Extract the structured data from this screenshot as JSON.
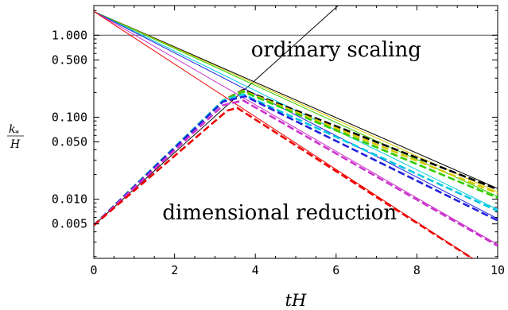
{
  "chart_data": {
    "type": "line",
    "xlabel": "tH",
    "ylabel_num": "k",
    "ylabel_sub": "*",
    "ylabel_den": "H",
    "xlim": [
      0,
      10
    ],
    "ylim": [
      0.0019,
      2.3
    ],
    "yscale": "log",
    "grid": false,
    "x_ticks": [
      0,
      2,
      4,
      6,
      8,
      10
    ],
    "x_tick_labels": [
      "0",
      "2",
      "4",
      "6",
      "8",
      "10"
    ],
    "y_ticks": [
      1.0,
      0.5,
      0.1,
      0.05,
      0.01,
      0.005
    ],
    "y_tick_labels": [
      "1.000",
      "0.500",
      "0.100",
      "0.050",
      "0.010",
      "0.005"
    ],
    "annotations": [
      {
        "text": "ordinary scaling",
        "x": 6.0,
        "y": 0.55
      },
      {
        "text": "dimensional reduction",
        "x": 4.6,
        "y": 0.0057
      }
    ],
    "reference_lines": [
      {
        "style": "horizontal",
        "color": "#555555",
        "points": [
          [
            0,
            1.0
          ],
          [
            10,
            1.0
          ]
        ]
      },
      {
        "style": "diagonal",
        "color": "#000000",
        "points": [
          [
            0,
            0.0048
          ],
          [
            6.05,
            2.3
          ]
        ]
      }
    ],
    "solid_series": [
      {
        "color": "#000000",
        "points": [
          [
            0,
            1.95
          ],
          [
            10,
            0.0135
          ]
        ]
      },
      {
        "color": "#d8c800",
        "points": [
          [
            0,
            1.95
          ],
          [
            10,
            0.0122
          ]
        ]
      },
      {
        "color": "#33cc00",
        "points": [
          [
            0,
            1.95
          ],
          [
            10,
            0.0108
          ]
        ]
      },
      {
        "color": "#00c8e0",
        "points": [
          [
            0,
            1.95
          ],
          [
            10,
            0.0075
          ]
        ]
      },
      {
        "color": "#2222dd",
        "points": [
          [
            0,
            1.95
          ],
          [
            10,
            0.0058
          ]
        ]
      },
      {
        "color": "#cc33cc",
        "points": [
          [
            0,
            1.95
          ],
          [
            10,
            0.0028
          ]
        ]
      },
      {
        "color": "#ee0000",
        "points": [
          [
            0,
            1.95
          ],
          [
            10,
            0.0012
          ]
        ]
      }
    ],
    "dashed_series": [
      {
        "color": "#000000",
        "points": [
          [
            0,
            0.0048
          ],
          [
            3.2,
            0.16
          ],
          [
            3.7,
            0.215
          ],
          [
            10,
            0.0132
          ]
        ]
      },
      {
        "color": "#d8c800",
        "points": [
          [
            0,
            0.0048
          ],
          [
            3.2,
            0.16
          ],
          [
            3.7,
            0.21
          ],
          [
            10,
            0.0118
          ]
        ]
      },
      {
        "color": "#33cc00",
        "points": [
          [
            0,
            0.0048
          ],
          [
            3.2,
            0.16
          ],
          [
            3.7,
            0.205
          ],
          [
            10,
            0.0104
          ]
        ]
      },
      {
        "color": "#00c8e0",
        "points": [
          [
            0,
            0.0048
          ],
          [
            3.2,
            0.16
          ],
          [
            3.7,
            0.19
          ],
          [
            10,
            0.0072
          ]
        ]
      },
      {
        "color": "#2222dd",
        "points": [
          [
            0,
            0.0048
          ],
          [
            3.2,
            0.155
          ],
          [
            3.75,
            0.18
          ],
          [
            10,
            0.0055
          ]
        ]
      },
      {
        "color": "#cc33cc",
        "points": [
          [
            0,
            0.0048
          ],
          [
            3.2,
            0.14
          ],
          [
            3.7,
            0.16
          ],
          [
            10,
            0.0027
          ]
        ]
      },
      {
        "color": "#ee0000",
        "points": [
          [
            0,
            0.0048
          ],
          [
            3.3,
            0.12
          ],
          [
            3.55,
            0.13
          ],
          [
            10,
            0.0012
          ]
        ]
      }
    ]
  }
}
